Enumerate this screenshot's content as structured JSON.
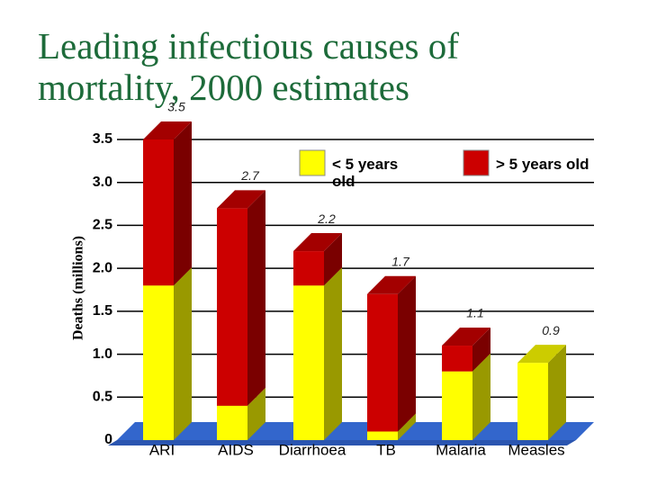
{
  "chart_data": {
    "type": "bar3d_stacked",
    "title": "Leading infectious causes of mortality, 2000 estimates",
    "y_label": "Deaths (millions)",
    "categories": [
      "ARI",
      "AIDS",
      "Diarrhoea",
      "TB",
      "Malaria",
      "Measles"
    ],
    "series": [
      {
        "name": "< 5 years old",
        "color": "#ffff00",
        "values": [
          1.8,
          0.4,
          1.8,
          0.1,
          0.8,
          0.9
        ]
      },
      {
        "name": "> 5 years old",
        "color": "#cc0000",
        "values": [
          1.7,
          2.3,
          0.4,
          1.6,
          0.3,
          0
        ]
      }
    ],
    "totals": [
      3.5,
      2.7,
      2.2,
      1.7,
      1.1,
      0.9
    ],
    "ylim": [
      0,
      3.5
    ],
    "yticks": [
      {
        "value": 0,
        "label": "0"
      },
      0.5,
      {
        "value": 1,
        "label": "1.0"
      },
      1.5,
      {
        "value": 2,
        "label": "2.0"
      },
      2.5,
      {
        "value": 3,
        "label": "3.0"
      },
      3.5
    ],
    "grid": true
  }
}
